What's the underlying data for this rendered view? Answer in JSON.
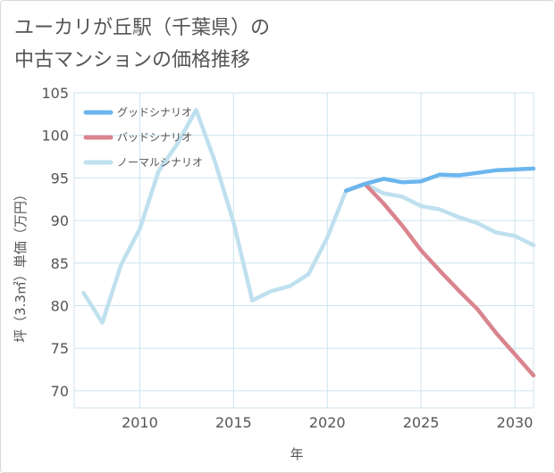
{
  "chart_data": {
    "type": "line",
    "title_lines": [
      "ユーカリが丘駅（千葉県）の",
      "中古マンションの価格推移"
    ],
    "xlabel": "年",
    "ylabel": "坪（3.3㎡）単価（万円）",
    "xlim": [
      2006.5,
      2031
    ],
    "ylim": [
      68,
      105
    ],
    "x_ticks": [
      2010,
      2015,
      2020,
      2025,
      2030
    ],
    "y_ticks": [
      70,
      75,
      80,
      85,
      90,
      95,
      100,
      105
    ],
    "grid": true,
    "legend_position": "top-left",
    "series": [
      {
        "name": "グッドシナリオ",
        "color": "#6cb6ee",
        "x": [
          2021,
          2022,
          2023,
          2024,
          2025,
          2026,
          2027,
          2028,
          2029,
          2030,
          2031
        ],
        "values": [
          93.5,
          94.3,
          94.9,
          94.5,
          94.6,
          95.4,
          95.3,
          95.6,
          95.9,
          96.0,
          96.1
        ]
      },
      {
        "name": "バッドシナリオ",
        "color": "#d9848e",
        "x": [
          2021,
          2022,
          2023,
          2024,
          2025,
          2026,
          2027,
          2028,
          2029,
          2030,
          2031
        ],
        "values": [
          93.5,
          94.3,
          92.0,
          89.4,
          86.5,
          84.1,
          81.8,
          79.6,
          76.8,
          74.3,
          71.8
        ]
      },
      {
        "name": "ノーマルシナリオ",
        "color": "#bfe0ee",
        "x": [
          2007,
          2008,
          2009,
          2010,
          2011,
          2012,
          2013,
          2014,
          2015,
          2016,
          2017,
          2018,
          2019,
          2020,
          2021,
          2022,
          2023,
          2024,
          2025,
          2026,
          2027,
          2028,
          2029,
          2030,
          2031
        ],
        "values": [
          81.5,
          78.0,
          84.8,
          89.0,
          95.8,
          99.0,
          103.0,
          97.0,
          89.8,
          80.6,
          81.7,
          82.3,
          83.7,
          88.0,
          93.5,
          94.3,
          93.2,
          92.8,
          91.7,
          91.3,
          90.4,
          89.7,
          88.6,
          88.2,
          87.1
        ]
      }
    ]
  }
}
